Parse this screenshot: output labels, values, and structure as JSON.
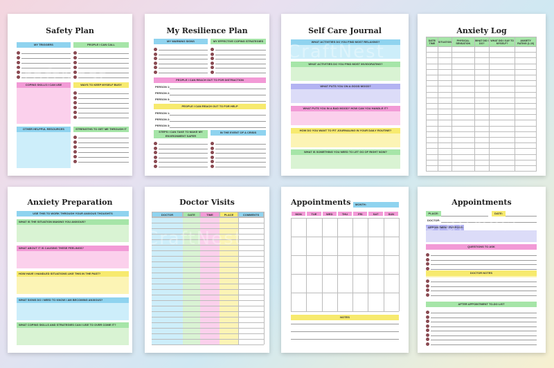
{
  "pages": {
    "safety_plan": {
      "title": "Safety Plan",
      "triggers": "MY TRIGGERS",
      "people": "PEOPLE I CAN CALL",
      "coping": "COPING SKILLS I CAN USE",
      "busy": "WAYS TO KEEP MYSELF BUSY",
      "resources": "OTHER HELPFUL RESOURCES",
      "strengths": "STRENGTHS TO GET ME THROUGH IT"
    },
    "resilience": {
      "title": "My Resilience Plan",
      "warning": "MY WARNING SIGNS",
      "coping": "MY EFFECTIVE COPING STRATEGIES",
      "distraction": "PEOPLE I CAN REACH OUT TO FOR DISTRACTION",
      "help": "PEOPLE I CAN REACH OUT TO FOR HELP",
      "steps": "STEPS I CAN TAKE TO MAKE MY ENVIRONMENT SAFER",
      "crisis": "IN THE EVENT OF A CRISIS",
      "person1": "PERSON 1:",
      "person2": "PERSON 2:",
      "person3": "PERSON 3:"
    },
    "self_care": {
      "title": "Self Care Journal",
      "q1": "WHAT ACTIVITIES DO YOU FIND MOST RELAXING?",
      "q2": "WHAT ACTIVITIES DO YOU FIND MOST INVIGORATING?",
      "q3": "WHAT PUTS YOU ON A GOOD MOOD?",
      "q4": "WHAT PUTS YOU IN A BAD MOOD? HOW CAN YOU HANDLE IT?",
      "q5": "HOW DO YOU WANT TO FIT JOURNALING IN YOUR DAILY ROUTINE?",
      "q6": "WHAT IS SOMETHING YOU NEED TO LET GO OF RIGHT NOW?"
    },
    "anxiety_log": {
      "title": "Anxiety Log",
      "columns": [
        "DATE/ TIME",
        "SITUATION",
        "PHYSICAL SENSATION",
        "WHAT DID I DO?",
        "WHAT DID I SAY TO MYSELF?",
        "ANXIETY RATING (1-10)"
      ]
    },
    "anxiety_prep": {
      "title": "Anxiety Preparation",
      "intro": "USE THIS TO WORK THROUGH YOUR ANXIOUS THOUGHTS",
      "q1": "WHAT IS THE SITUATION MAKING YOU ANXIOUS?",
      "q2": "WHAT ABOUT IT IS CAUSING THESE FEELINGS?",
      "q3": "HOW HAVE I HANDLED SITUATIONS LIKE THIS IN THE PAST?",
      "q4": "WHAT SIGNS DO I NEED TO KNOW I AM BECOMING ANXIOUS?",
      "q5": "WHAT COPING SKILLS AND STRATEGIES CAN I USE TO OVER COME IT?"
    },
    "doctor_visits": {
      "title": "Doctor Visits",
      "columns": [
        "DOCTOR",
        "DATE",
        "TIME",
        "PLACE",
        "COMMENTS"
      ]
    },
    "appointments_month": {
      "title": "Appointments",
      "month": "MONTH:",
      "days": [
        "MON",
        "TUE",
        "WED",
        "THU",
        "FRI",
        "SAT",
        "SUN"
      ],
      "notes": "NOTES"
    },
    "appointments_detail": {
      "title": "Appointments",
      "place": "PLACE:",
      "date": "DATE:",
      "doctor": "DOCTOR:",
      "purpose": "APPOINTMENT PURPOSE:",
      "questions": "QUESTIONS TO ASK",
      "notes": "DOCTOR NOTES",
      "after": "AFTER APPOINTMENT TO-DO LIST"
    }
  },
  "watermark": "CraftNest"
}
